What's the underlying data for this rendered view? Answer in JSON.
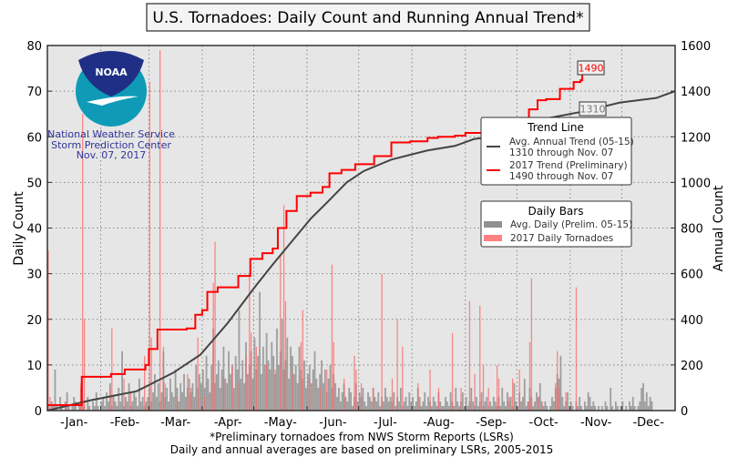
{
  "chart_data": {
    "type": "bar+line",
    "title": "U.S. Tornadoes: Daily Count and Running Annual Trend*",
    "ylabel": "Daily Count",
    "y2label": "Annual Count",
    "ylim": [
      0,
      80
    ],
    "y2lim": [
      0,
      1600
    ],
    "yticks": [
      "0",
      "10",
      "20",
      "30",
      "40",
      "50",
      "60",
      "70",
      "80"
    ],
    "y2ticks": [
      "0",
      "200",
      "400",
      "600",
      "800",
      "1000",
      "1200",
      "1400",
      "1600"
    ],
    "xticks": [
      "-Jan-",
      "-Feb-",
      "-Mar-",
      "-Apr-",
      "-May-",
      "-Jun-",
      "-Jul-",
      "-Aug-",
      "-Sep-",
      "-Oct-",
      "-Nov-",
      "-Dec-"
    ],
    "grid": true,
    "footnotes": [
      "*Preliminary tornadoes from NWS Storm Reports (LSRs)",
      "Daily and annual averages are based on preliminary LSRs, 2005-2015"
    ],
    "logo": {
      "text": "NOAA",
      "lines": [
        "National Weather Service",
        "Storm Prediction Center",
        "Nov. 07, 2017"
      ]
    },
    "colors": {
      "trend_avg": "#444444",
      "trend_2017": "#ff0000",
      "bar_avg": "#909090",
      "bar_2017": "#ff6666",
      "logo_text": "#333399"
    },
    "legend_trend": {
      "title": "Trend Line",
      "items": [
        {
          "line1": "Avg. Annual Trend (05-15)",
          "line2": "1310 through Nov. 07"
        },
        {
          "line1": "2017 Trend (Preliminary)",
          "line2": "1490 through Nov. 07"
        }
      ],
      "placement": "right"
    },
    "legend_bars": {
      "title": "Daily Bars",
      "items": [
        "Avg. Daily (Prelim. 05-15)",
        "2017 Daily Tornadoes"
      ],
      "placement": "right"
    },
    "annotations": {
      "trend_2017_end": "1490",
      "trend_avg_now": "1310"
    },
    "trend_2017": [
      [
        0,
        24
      ],
      [
        20,
        24
      ],
      [
        20,
        148
      ],
      [
        37,
        160
      ],
      [
        45,
        180
      ],
      [
        57,
        200
      ],
      [
        59,
        270
      ],
      [
        64,
        355
      ],
      [
        81,
        360
      ],
      [
        86,
        420
      ],
      [
        90,
        440
      ],
      [
        93,
        520
      ],
      [
        99,
        540
      ],
      [
        111,
        590
      ],
      [
        118,
        665
      ],
      [
        125,
        690
      ],
      [
        131,
        710
      ],
      [
        134,
        800
      ],
      [
        139,
        875
      ],
      [
        145,
        940
      ],
      [
        153,
        955
      ],
      [
        160,
        980
      ],
      [
        164,
        1040
      ],
      [
        171,
        1055
      ],
      [
        179,
        1080
      ],
      [
        190,
        1115
      ],
      [
        200,
        1175
      ],
      [
        211,
        1180
      ],
      [
        221,
        1195
      ],
      [
        227,
        1200
      ],
      [
        237,
        1205
      ],
      [
        243,
        1217
      ],
      [
        253,
        1235
      ],
      [
        261,
        1260
      ],
      [
        269,
        1270
      ],
      [
        280,
        1320
      ],
      [
        285,
        1360
      ],
      [
        290,
        1365
      ],
      [
        298,
        1410
      ],
      [
        306,
        1440
      ],
      [
        310,
        1448
      ],
      [
        311,
        1490
      ]
    ],
    "trend_avg": [
      [
        0,
        0
      ],
      [
        25,
        45
      ],
      [
        52,
        85
      ],
      [
        73,
        165
      ],
      [
        89,
        245
      ],
      [
        105,
        385
      ],
      [
        121,
        545
      ],
      [
        131,
        640
      ],
      [
        142,
        740
      ],
      [
        153,
        840
      ],
      [
        163,
        915
      ],
      [
        174,
        1000
      ],
      [
        184,
        1050
      ],
      [
        200,
        1100
      ],
      [
        221,
        1140
      ],
      [
        237,
        1160
      ],
      [
        248,
        1190
      ],
      [
        258,
        1200
      ],
      [
        269,
        1220
      ],
      [
        280,
        1260
      ],
      [
        290,
        1280
      ],
      [
        311,
        1310
      ],
      [
        333,
        1350
      ],
      [
        354,
        1370
      ],
      [
        365,
        1400
      ]
    ],
    "daily_2017": [
      [
        0,
        35
      ],
      [
        1,
        3
      ],
      [
        10,
        2
      ],
      [
        19,
        6
      ],
      [
        20,
        65
      ],
      [
        21,
        20
      ],
      [
        36,
        5
      ],
      [
        37,
        18
      ],
      [
        44,
        7
      ],
      [
        48,
        4
      ],
      [
        56,
        12
      ],
      [
        59,
        72
      ],
      [
        60,
        16
      ],
      [
        65,
        79
      ],
      [
        67,
        14
      ],
      [
        68,
        6
      ],
      [
        75,
        3
      ],
      [
        81,
        8
      ],
      [
        83,
        5
      ],
      [
        87,
        16
      ],
      [
        91,
        3
      ],
      [
        95,
        6
      ],
      [
        96,
        28
      ],
      [
        97,
        37
      ],
      [
        102,
        7
      ],
      [
        107,
        10
      ],
      [
        111,
        6
      ],
      [
        115,
        12
      ],
      [
        117,
        30
      ],
      [
        118,
        17
      ],
      [
        121,
        14
      ],
      [
        127,
        10
      ],
      [
        132,
        9
      ],
      [
        135,
        34
      ],
      [
        137,
        45
      ],
      [
        138,
        24
      ],
      [
        142,
        8
      ],
      [
        147,
        15
      ],
      [
        148,
        22
      ],
      [
        152,
        7
      ],
      [
        158,
        5
      ],
      [
        162,
        9
      ],
      [
        165,
        32
      ],
      [
        166,
        15
      ],
      [
        172,
        7
      ],
      [
        178,
        12
      ],
      [
        179,
        9
      ],
      [
        182,
        6
      ],
      [
        189,
        5
      ],
      [
        194,
        30
      ],
      [
        200,
        7
      ],
      [
        203,
        20
      ],
      [
        206,
        14
      ],
      [
        215,
        6
      ],
      [
        222,
        9
      ],
      [
        227,
        5
      ],
      [
        235,
        17
      ],
      [
        240,
        5
      ],
      [
        245,
        24
      ],
      [
        248,
        8
      ],
      [
        251,
        23
      ],
      [
        253,
        10
      ],
      [
        256,
        5
      ],
      [
        261,
        10
      ],
      [
        262,
        7
      ],
      [
        268,
        3
      ],
      [
        270,
        7
      ],
      [
        274,
        9
      ],
      [
        279,
        2
      ],
      [
        280,
        15
      ],
      [
        281,
        29
      ],
      [
        285,
        3
      ],
      [
        287,
        2
      ],
      [
        295,
        6
      ],
      [
        296,
        13
      ],
      [
        297,
        5
      ],
      [
        301,
        4
      ],
      [
        307,
        27
      ]
    ],
    "daily_avg": [
      1,
      0,
      2,
      1,
      9,
      1,
      0,
      3,
      1,
      0,
      2,
      4,
      1,
      0,
      1,
      3,
      2,
      0,
      1,
      5,
      2,
      1,
      0,
      3,
      1,
      0,
      2,
      1,
      4,
      1,
      0,
      2,
      3,
      1,
      4,
      2,
      6,
      1,
      3,
      2,
      1,
      5,
      2,
      13,
      1,
      3,
      2,
      6,
      1,
      2,
      4,
      3,
      1,
      7,
      2,
      3,
      1,
      2,
      3,
      5,
      2,
      4,
      8,
      3,
      6,
      2,
      4,
      13,
      3,
      5,
      2,
      7,
      4,
      3,
      9,
      5,
      2,
      6,
      4,
      8,
      3,
      5,
      7,
      4,
      6,
      3,
      10,
      5,
      8,
      6,
      9,
      5,
      12,
      7,
      4,
      10,
      18,
      6,
      8,
      11,
      5,
      9,
      14,
      7,
      6,
      13,
      8,
      10,
      5,
      12,
      9,
      22,
      7,
      11,
      6,
      15,
      8,
      10,
      13,
      7,
      16,
      9,
      12,
      26,
      8,
      14,
      10,
      17,
      11,
      9,
      15,
      12,
      8,
      18,
      10,
      13,
      20,
      9,
      11,
      16,
      7,
      14,
      12,
      8,
      10,
      6,
      14,
      9,
      7,
      11,
      5,
      8,
      10,
      6,
      9,
      13,
      7,
      5,
      8,
      11,
      6,
      9,
      4,
      7,
      10,
      5,
      8,
      6,
      3,
      5,
      2,
      4,
      6,
      3,
      2,
      5,
      4,
      1,
      3,
      6,
      2,
      4,
      3,
      5,
      2,
      1,
      4,
      3,
      2,
      5,
      3,
      2,
      4,
      1,
      3,
      2,
      5,
      3,
      2,
      3,
      2,
      4,
      1,
      3,
      2,
      5,
      1,
      2,
      3,
      1,
      4,
      2,
      3,
      1,
      2,
      5,
      3,
      1,
      2,
      4,
      1,
      3,
      2,
      1,
      3,
      2,
      1,
      4,
      2,
      1,
      1,
      3,
      2,
      1,
      4,
      2,
      1,
      5,
      2,
      1,
      2,
      4,
      1,
      3,
      1,
      2,
      5,
      2,
      1,
      3,
      1,
      2,
      4,
      1,
      2,
      3,
      1,
      2,
      1,
      3,
      2,
      1,
      3,
      1,
      5,
      2,
      1,
      4,
      2,
      3,
      1,
      6,
      2,
      1,
      4,
      2,
      3,
      7,
      1,
      2,
      5,
      3,
      1,
      2,
      4,
      3,
      6,
      2,
      1,
      2,
      1,
      0,
      1,
      3,
      2,
      5,
      8,
      7,
      12,
      3,
      1,
      2,
      4,
      1,
      2,
      1,
      0,
      2,
      1,
      3,
      1,
      0,
      2,
      1,
      4,
      3,
      1,
      2,
      1,
      0,
      1,
      0,
      1,
      0,
      2,
      1,
      0,
      5,
      1,
      0,
      2,
      1,
      0,
      1,
      2,
      0,
      1,
      0,
      2,
      1,
      3,
      1,
      0,
      1,
      2,
      5,
      6,
      2,
      4,
      1,
      3,
      2
    ]
  }
}
